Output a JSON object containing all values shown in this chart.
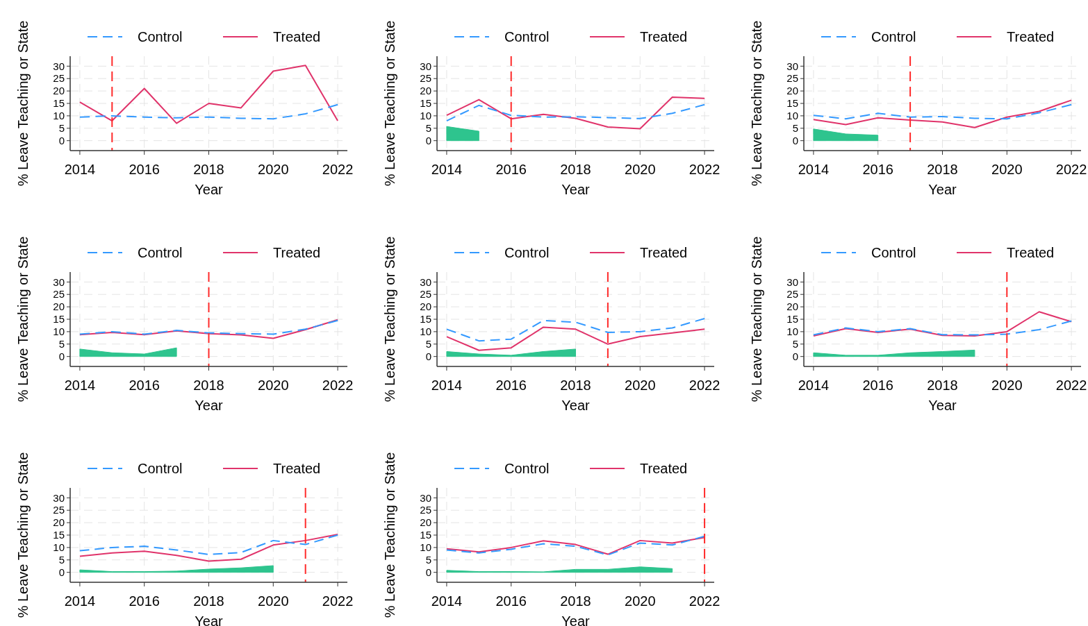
{
  "chart_data": [
    {
      "type": "line",
      "xlabel": "Year",
      "ylabel": "% Leave Teaching or State",
      "x": [
        2014,
        2015,
        2016,
        2017,
        2018,
        2019,
        2020,
        2021,
        2022
      ],
      "xlim": [
        2013.7,
        2022.3
      ],
      "ylim": [
        -4,
        34
      ],
      "xticks": [
        2014,
        2016,
        2018,
        2020,
        2022
      ],
      "yticks": [
        0,
        5,
        10,
        15,
        20,
        25,
        30
      ],
      "grid": true,
      "legend": "top",
      "ref_lines": [
        {
          "axis": "x",
          "value": 2015,
          "color": "#ff2a2a",
          "line_style": "dashed"
        }
      ],
      "series": [
        {
          "name": "Control",
          "color": "#3399ff",
          "line_style": "dashed",
          "values": [
            9.5,
            10,
            9.5,
            9.2,
            9.5,
            9,
            8.8,
            10.8,
            14.5
          ]
        },
        {
          "name": "Treated",
          "color": "#e0336a",
          "line_style": "solid",
          "values": [
            15.5,
            8,
            21,
            7,
            15,
            13.2,
            28,
            30.3,
            8
          ]
        }
      ]
    },
    {
      "type": "line",
      "xlabel": "Year",
      "ylabel": "% Leave Teaching or State",
      "x": [
        2014,
        2015,
        2016,
        2017,
        2018,
        2019,
        2020,
        2021,
        2022
      ],
      "xlim": [
        2013.7,
        2022.3
      ],
      "ylim": [
        -4,
        34
      ],
      "xticks": [
        2014,
        2016,
        2018,
        2020,
        2022
      ],
      "yticks": [
        0,
        5,
        10,
        15,
        20,
        25,
        30
      ],
      "grid": true,
      "legend": "top",
      "ref_lines": [
        {
          "axis": "x",
          "value": 2016,
          "color": "#ff2a2a",
          "line_style": "dashed"
        }
      ],
      "series": [
        {
          "name": "Control",
          "color": "#3399ff",
          "line_style": "dashed",
          "values": [
            8,
            14.2,
            10.2,
            9.5,
            9.6,
            9.3,
            8.9,
            11,
            14.5
          ]
        },
        {
          "name": "Treated",
          "color": "#e0336a",
          "line_style": "solid",
          "values": [
            10.2,
            16.5,
            8.8,
            10.6,
            9,
            5.5,
            4.8,
            17.5,
            17
          ]
        },
        {
          "type": "area",
          "color": "#2ec48e",
          "x": [
            2014,
            2015
          ],
          "values": [
            5.7,
            3.8
          ]
        }
      ]
    },
    {
      "type": "line",
      "xlabel": "Year",
      "ylabel": "% Leave Teaching or State",
      "x": [
        2014,
        2015,
        2016,
        2017,
        2018,
        2019,
        2020,
        2021,
        2022
      ],
      "xlim": [
        2013.7,
        2022.3
      ],
      "ylim": [
        -4,
        34
      ],
      "xticks": [
        2014,
        2016,
        2018,
        2020,
        2022
      ],
      "yticks": [
        0,
        5,
        10,
        15,
        20,
        25,
        30
      ],
      "grid": true,
      "legend": "top",
      "ref_lines": [
        {
          "axis": "x",
          "value": 2017,
          "color": "#ff2a2a",
          "line_style": "dashed"
        }
      ],
      "series": [
        {
          "name": "Control",
          "color": "#3399ff",
          "line_style": "dashed",
          "values": [
            10.2,
            8.8,
            11,
            9.5,
            9.7,
            9,
            8.8,
            11.2,
            14.5
          ]
        },
        {
          "name": "Treated",
          "color": "#e0336a",
          "line_style": "solid",
          "values": [
            8.5,
            6.5,
            9.2,
            8.3,
            7.5,
            5.3,
            9.5,
            11.8,
            16.3
          ]
        },
        {
          "type": "area",
          "color": "#2ec48e",
          "x": [
            2014,
            2015,
            2016
          ],
          "values": [
            4.7,
            2.7,
            2.2
          ]
        }
      ]
    },
    {
      "type": "line",
      "xlabel": "Year",
      "ylabel": "% Leave Teaching or State",
      "x": [
        2014,
        2015,
        2016,
        2017,
        2018,
        2019,
        2020,
        2021,
        2022
      ],
      "xlim": [
        2013.7,
        2022.3
      ],
      "ylim": [
        -4,
        34
      ],
      "xticks": [
        2014,
        2016,
        2018,
        2020,
        2022
      ],
      "yticks": [
        0,
        5,
        10,
        15,
        20,
        25,
        30
      ],
      "grid": true,
      "legend": "top",
      "ref_lines": [
        {
          "axis": "x",
          "value": 2018,
          "color": "#ff2a2a",
          "line_style": "dashed"
        }
      ],
      "series": [
        {
          "name": "Control",
          "color": "#3399ff",
          "line_style": "dashed",
          "values": [
            9,
            10,
            9,
            10.5,
            9.5,
            9.2,
            9,
            11,
            14.5
          ]
        },
        {
          "name": "Treated",
          "color": "#e0336a",
          "line_style": "solid",
          "values": [
            8.8,
            9.7,
            8.8,
            10.3,
            9.2,
            8.7,
            7.3,
            10.8,
            14.8
          ]
        },
        {
          "type": "area",
          "color": "#2ec48e",
          "x": [
            2014,
            2015,
            2016,
            2017
          ],
          "values": [
            3,
            1.5,
            1,
            3.5
          ]
        }
      ]
    },
    {
      "type": "line",
      "xlabel": "Year",
      "ylabel": "% Leave Teaching or State",
      "x": [
        2014,
        2015,
        2016,
        2017,
        2018,
        2019,
        2020,
        2021,
        2022
      ],
      "xlim": [
        2013.7,
        2022.3
      ],
      "ylim": [
        -4,
        34
      ],
      "xticks": [
        2014,
        2016,
        2018,
        2020,
        2022
      ],
      "yticks": [
        0,
        5,
        10,
        15,
        20,
        25,
        30
      ],
      "grid": true,
      "legend": "top",
      "ref_lines": [
        {
          "axis": "x",
          "value": 2019,
          "color": "#ff2a2a",
          "line_style": "dashed"
        }
      ],
      "series": [
        {
          "name": "Control",
          "color": "#3399ff",
          "line_style": "dashed",
          "values": [
            11,
            6.3,
            7,
            14.5,
            13.8,
            9.7,
            10,
            11.5,
            15.3
          ]
        },
        {
          "name": "Treated",
          "color": "#e0336a",
          "line_style": "solid",
          "values": [
            8,
            2.5,
            3.5,
            11.8,
            11,
            5,
            8,
            9.5,
            11
          ]
        },
        {
          "type": "area",
          "color": "#2ec48e",
          "x": [
            2014,
            2015,
            2016,
            2017,
            2018
          ],
          "values": [
            2,
            1,
            0.5,
            2,
            3
          ]
        }
      ]
    },
    {
      "type": "line",
      "xlabel": "Year",
      "ylabel": "% Leave Teaching or State",
      "x": [
        2014,
        2015,
        2016,
        2017,
        2018,
        2019,
        2020,
        2021,
        2022
      ],
      "xlim": [
        2013.7,
        2022.3
      ],
      "ylim": [
        -4,
        34
      ],
      "xticks": [
        2014,
        2016,
        2018,
        2020,
        2022
      ],
      "yticks": [
        0,
        5,
        10,
        15,
        20,
        25,
        30
      ],
      "grid": true,
      "legend": "top",
      "ref_lines": [
        {
          "axis": "x",
          "value": 2020,
          "color": "#ff2a2a",
          "line_style": "dashed"
        }
      ],
      "series": [
        {
          "name": "Control",
          "color": "#3399ff",
          "line_style": "dashed",
          "values": [
            8.7,
            11.5,
            10,
            11.2,
            8.8,
            8.7,
            9,
            10.8,
            14.3
          ]
        },
        {
          "name": "Treated",
          "color": "#e0336a",
          "line_style": "solid",
          "values": [
            8.3,
            11.2,
            9.7,
            11,
            8.5,
            8.3,
            10,
            18,
            14
          ]
        },
        {
          "type": "area",
          "color": "#2ec48e",
          "x": [
            2014,
            2015,
            2016,
            2017,
            2018,
            2019
          ],
          "values": [
            1.5,
            0.5,
            0.5,
            1.5,
            2,
            2.6
          ]
        }
      ]
    },
    {
      "type": "line",
      "xlabel": "Year",
      "ylabel": "% Leave Teaching or State",
      "x": [
        2014,
        2015,
        2016,
        2017,
        2018,
        2019,
        2020,
        2021,
        2022
      ],
      "xlim": [
        2013.7,
        2022.3
      ],
      "ylim": [
        -4,
        34
      ],
      "xticks": [
        2014,
        2016,
        2018,
        2020,
        2022
      ],
      "yticks": [
        0,
        5,
        10,
        15,
        20,
        25,
        30
      ],
      "grid": true,
      "legend": "top",
      "ref_lines": [
        {
          "axis": "x",
          "value": 2021,
          "color": "#ff2a2a",
          "line_style": "dashed"
        }
      ],
      "series": [
        {
          "name": "Control",
          "color": "#3399ff",
          "line_style": "dashed",
          "values": [
            8.7,
            10,
            10.5,
            9,
            7.2,
            8,
            12.8,
            11.2,
            15
          ]
        },
        {
          "name": "Treated",
          "color": "#e0336a",
          "line_style": "solid",
          "values": [
            6.5,
            7.8,
            8.5,
            6.8,
            4.5,
            5.3,
            11,
            12.8,
            15.3
          ]
        },
        {
          "type": "area",
          "color": "#2ec48e",
          "x": [
            2014,
            2015,
            2016,
            2017,
            2018,
            2019,
            2020
          ],
          "values": [
            1,
            0.3,
            0.3,
            0.5,
            1.3,
            1.8,
            2.7
          ]
        }
      ]
    },
    {
      "type": "line",
      "xlabel": "Year",
      "ylabel": "% Leave Teaching or State",
      "x": [
        2014,
        2015,
        2016,
        2017,
        2018,
        2019,
        2020,
        2021,
        2022
      ],
      "xlim": [
        2013.7,
        2022.3
      ],
      "ylim": [
        -4,
        34
      ],
      "xticks": [
        2014,
        2016,
        2018,
        2020,
        2022
      ],
      "yticks": [
        0,
        5,
        10,
        15,
        20,
        25,
        30
      ],
      "grid": true,
      "legend": "top",
      "ref_lines": [
        {
          "axis": "x",
          "value": 2022,
          "color": "#ff2a2a",
          "line_style": "dashed"
        }
      ],
      "series": [
        {
          "name": "Control",
          "color": "#3399ff",
          "line_style": "dashed",
          "values": [
            9,
            7.8,
            9.3,
            11.5,
            10.5,
            7,
            11.8,
            11,
            14.5
          ]
        },
        {
          "name": "Treated",
          "color": "#e0336a",
          "line_style": "solid",
          "values": [
            9.5,
            8.2,
            10,
            12.7,
            11.2,
            7.3,
            12.8,
            11.8,
            14
          ]
        },
        {
          "type": "area",
          "color": "#2ec48e",
          "x": [
            2014,
            2015,
            2016,
            2017,
            2018,
            2019,
            2020,
            2021
          ],
          "values": [
            0.8,
            0.3,
            0.3,
            0.2,
            1.2,
            1.2,
            2.2,
            1.5
          ]
        }
      ]
    }
  ]
}
